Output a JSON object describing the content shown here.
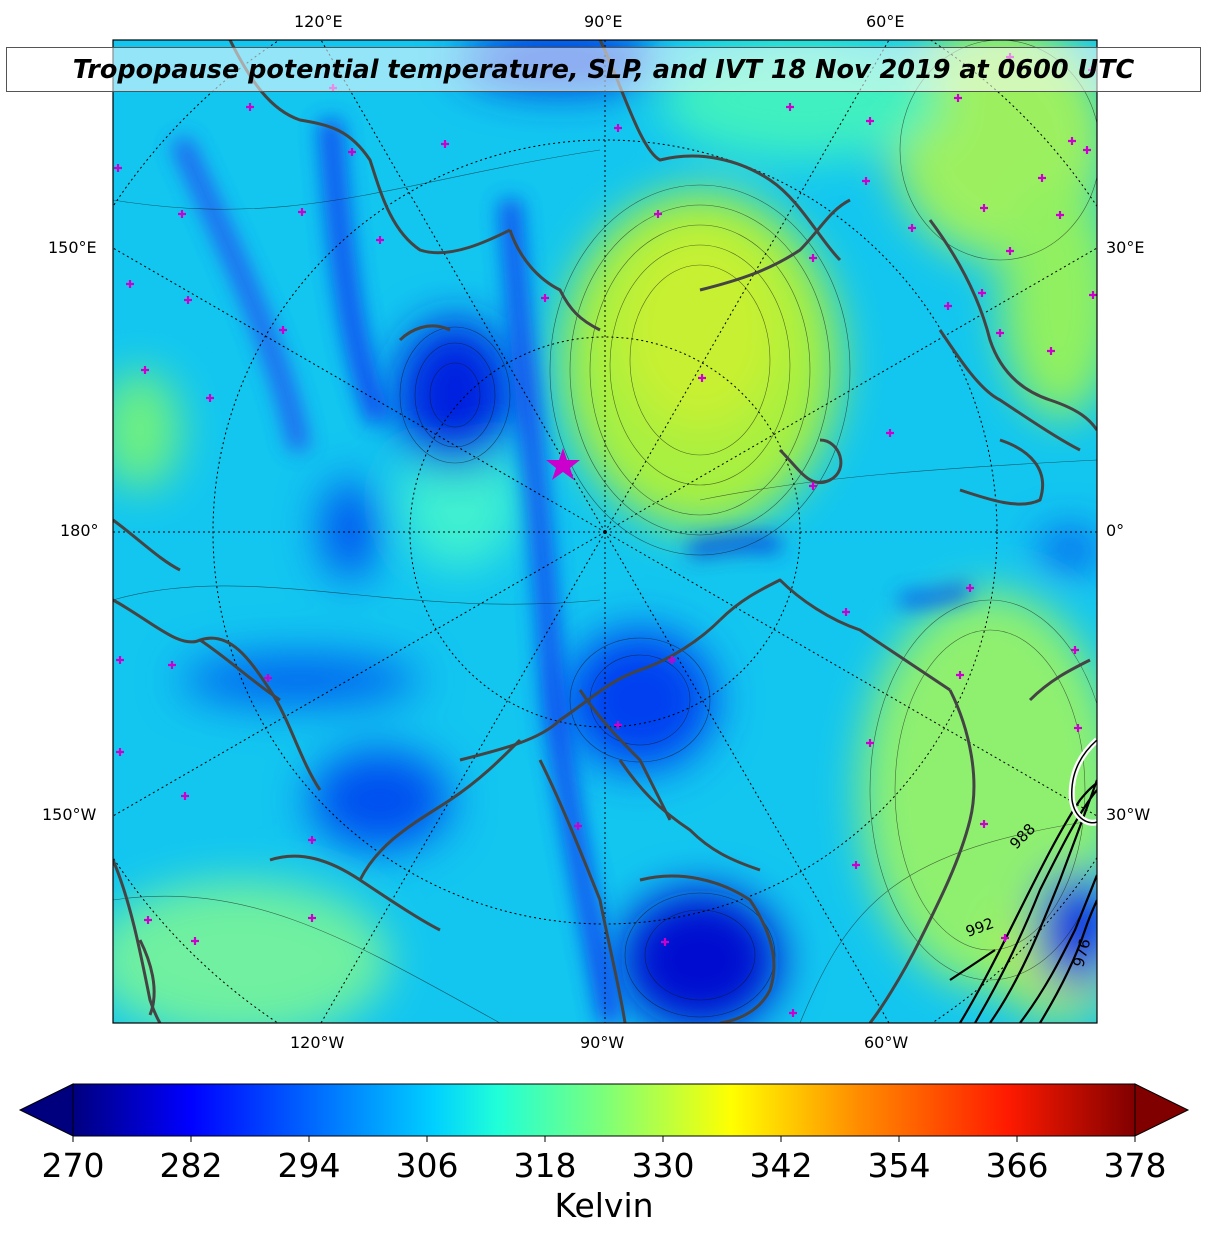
{
  "title": "Tropopause potential temperature, SLP, and IVT 18 Nov 2019 at 0600 UTC",
  "lon_labels": {
    "top": [
      "120°E",
      "90°E",
      "60°E"
    ],
    "left": [
      "150°E",
      "180°",
      "150°W"
    ],
    "right": [
      "30°E",
      "0°",
      "30°W"
    ],
    "bottom": [
      "120°W",
      "90°W",
      "60°W"
    ]
  },
  "slp_contour_labels": [
    "988",
    "992",
    "976"
  ],
  "colorbar": {
    "ticks": [
      "270",
      "282",
      "294",
      "306",
      "318",
      "330",
      "342",
      "354",
      "366",
      "378"
    ],
    "label": "Kelvin",
    "min": 270,
    "max": 378,
    "extend": "both",
    "colormap": "jet"
  },
  "colors": {
    "coastline": "#444444",
    "marker": "#cc00cc",
    "slp_contour": "#000000",
    "ivt_contour": "#ffffff"
  },
  "markers": {
    "star_symbol": "magenta-star",
    "station_symbol": "magenta-plus"
  }
}
